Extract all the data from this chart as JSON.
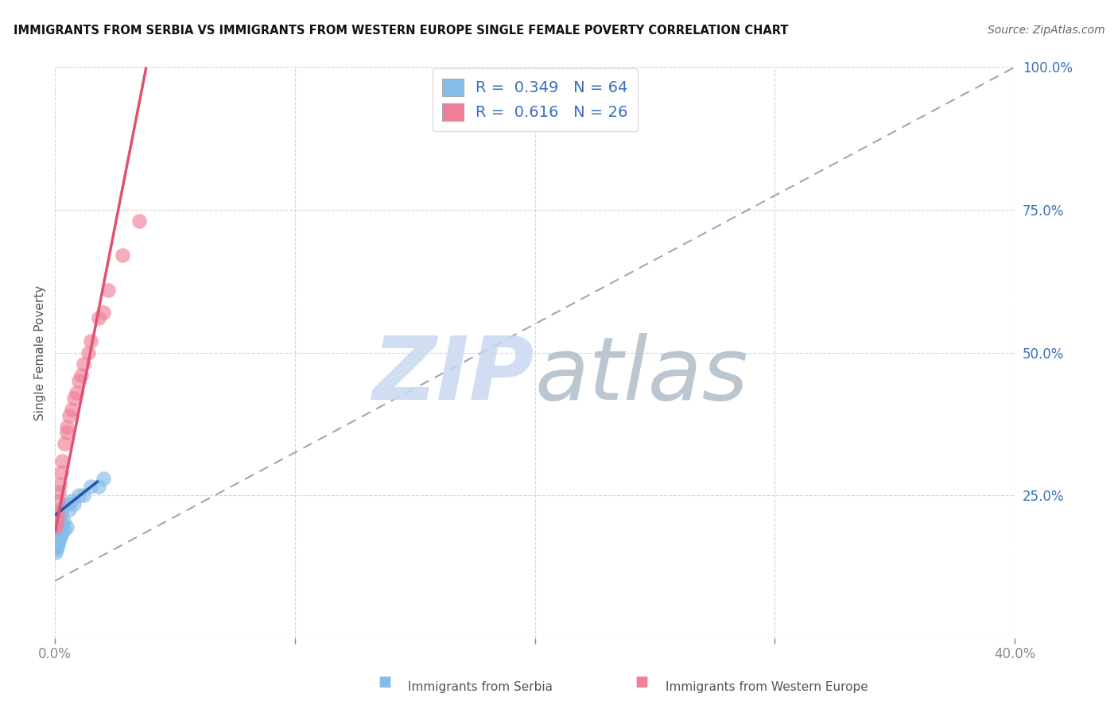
{
  "title": "IMMIGRANTS FROM SERBIA VS IMMIGRANTS FROM WESTERN EUROPE SINGLE FEMALE POVERTY CORRELATION CHART",
  "source": "Source: ZipAtlas.com",
  "xlabel_serbia": "Immigrants from Serbia",
  "xlabel_we": "Immigrants from Western Europe",
  "ylabel": "Single Female Poverty",
  "xlim": [
    0.0,
    0.4
  ],
  "ylim": [
    0.0,
    1.0
  ],
  "R_serbia": 0.349,
  "N_serbia": 64,
  "R_we": 0.616,
  "N_we": 26,
  "color_serbia": "#85bce8",
  "color_we": "#f08098",
  "color_serbia_line": "#2255aa",
  "color_we_line": "#e05070",
  "color_ref_line": "#9999bb",
  "watermark_color_zip": "#c8d8f0",
  "watermark_color_atlas": "#b0bcc8",
  "background_color": "#ffffff",
  "grid_color": "#cccccc",
  "serbia_x": [
    0.0002,
    0.0003,
    0.0004,
    0.0005,
    0.0006,
    0.0008,
    0.001,
    0.001,
    0.0012,
    0.0015,
    0.0002,
    0.0003,
    0.0005,
    0.0007,
    0.0009,
    0.0011,
    0.0013,
    0.0015,
    0.0018,
    0.002,
    0.0002,
    0.0004,
    0.0006,
    0.0008,
    0.001,
    0.0012,
    0.0014,
    0.0016,
    0.002,
    0.0025,
    0.0003,
    0.0005,
    0.0007,
    0.001,
    0.0012,
    0.0015,
    0.0018,
    0.0022,
    0.0028,
    0.0035,
    0.0004,
    0.0006,
    0.0009,
    0.0012,
    0.0016,
    0.002,
    0.0025,
    0.003,
    0.004,
    0.005,
    0.0008,
    0.0012,
    0.0018,
    0.0025,
    0.0035,
    0.005,
    0.007,
    0.01,
    0.015,
    0.02,
    0.006,
    0.008,
    0.012,
    0.018
  ],
  "serbia_y": [
    0.185,
    0.19,
    0.195,
    0.2,
    0.185,
    0.195,
    0.2,
    0.205,
    0.21,
    0.215,
    0.175,
    0.18,
    0.185,
    0.19,
    0.195,
    0.2,
    0.205,
    0.21,
    0.215,
    0.22,
    0.17,
    0.175,
    0.18,
    0.185,
    0.19,
    0.195,
    0.2,
    0.205,
    0.21,
    0.215,
    0.16,
    0.165,
    0.17,
    0.175,
    0.18,
    0.185,
    0.19,
    0.195,
    0.2,
    0.205,
    0.15,
    0.155,
    0.16,
    0.165,
    0.17,
    0.175,
    0.18,
    0.185,
    0.19,
    0.195,
    0.21,
    0.215,
    0.22,
    0.225,
    0.23,
    0.235,
    0.24,
    0.25,
    0.265,
    0.28,
    0.225,
    0.235,
    0.25,
    0.265
  ],
  "we_x": [
    0.0003,
    0.0005,
    0.0008,
    0.001,
    0.0012,
    0.0015,
    0.002,
    0.0025,
    0.003,
    0.004,
    0.005,
    0.006,
    0.008,
    0.01,
    0.012,
    0.015,
    0.018,
    0.022,
    0.028,
    0.035,
    0.005,
    0.007,
    0.009,
    0.011,
    0.014,
    0.02
  ],
  "we_y": [
    0.195,
    0.2,
    0.21,
    0.22,
    0.24,
    0.255,
    0.27,
    0.29,
    0.31,
    0.34,
    0.36,
    0.39,
    0.42,
    0.45,
    0.48,
    0.52,
    0.56,
    0.61,
    0.67,
    0.73,
    0.37,
    0.4,
    0.43,
    0.46,
    0.5,
    0.57
  ],
  "serbia_line_x0": 0.0,
  "serbia_line_y0": 0.215,
  "serbia_line_x1": 0.018,
  "serbia_line_y1": 0.275,
  "we_line_x0": 0.0,
  "we_line_y0": 0.185,
  "we_line_x1": 0.038,
  "we_line_y1": 1.0,
  "ref_line_x0": 0.0,
  "ref_line_y0": 0.1,
  "ref_line_x1": 0.4,
  "ref_line_y1": 1.0
}
